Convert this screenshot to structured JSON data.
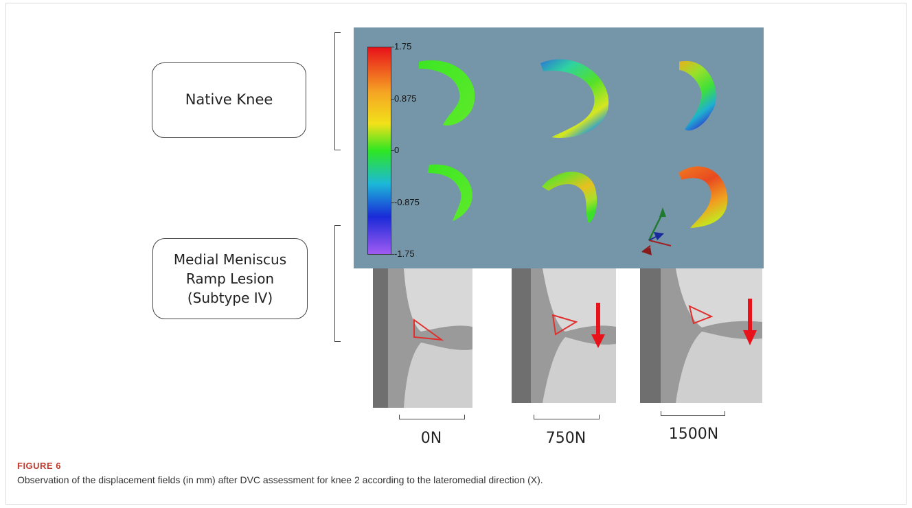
{
  "figure": {
    "label": "FIGURE 6",
    "caption": "Observation of the displacement fields (in mm) after DVC assessment for knee 2 according to the lateromedial direction (X)."
  },
  "rows": {
    "native": "Native Knee",
    "ramp_line1": "Medial Meniscus",
    "ramp_line2": "Ramp Lesion",
    "ramp_line3": "(Subtype IV)"
  },
  "colorbar": {
    "ticks": [
      "1.75",
      "0.875",
      "0",
      "-0.875",
      "-1.75"
    ],
    "colors": [
      "#e8121a",
      "#f5a623",
      "#f2e11a",
      "#2ee622",
      "#1cb8d8",
      "#1a2ad8",
      "#a15bf2"
    ]
  },
  "loads": [
    "0N",
    "750N",
    "1500N"
  ],
  "colors": {
    "panel_bg": "#7596a8",
    "lesion_outline": "#e0302e",
    "arrow": "#e8121a",
    "figure_label": "#c0392b"
  }
}
